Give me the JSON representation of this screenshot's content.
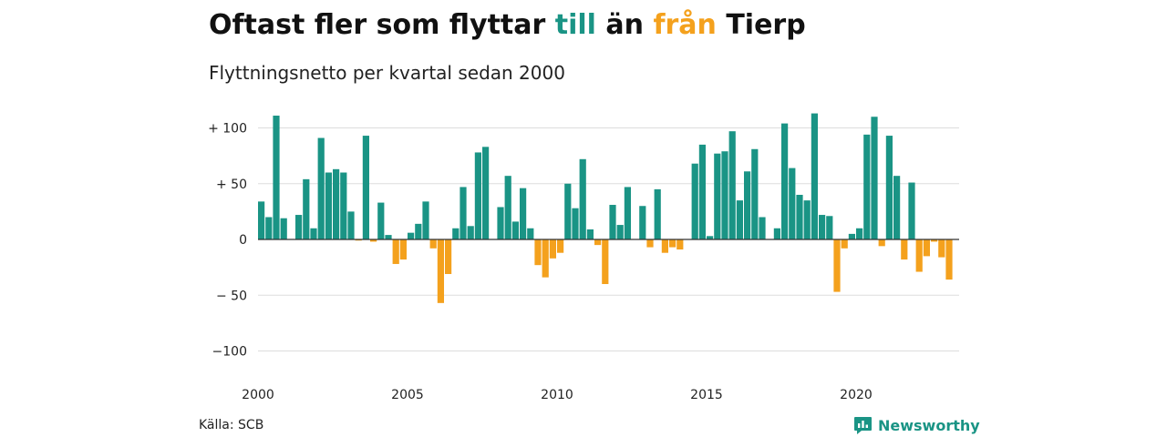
{
  "title": {
    "prefix": "Oftast fler som flyttar ",
    "word_in": "till",
    "middle": " än ",
    "word_out": "från",
    "suffix": " Tierp"
  },
  "subtitle": "Flyttningsnetto per kvartal sedan 2000",
  "source": "Källa: SCB",
  "brand": {
    "name": "Newsworthy",
    "icon": "bar-chart-speech-bubble-icon"
  },
  "colors": {
    "positive": "#1a9485",
    "negative": "#f4a11d",
    "grid": "#dddddd",
    "zero_line": "#333333",
    "brand": "#1a9485"
  },
  "chart_data": {
    "type": "bar",
    "title": "Oftast fler som flyttar till än från Tierp",
    "subtitle": "Flyttningsnetto per kvartal sedan 2000",
    "xlabel": "",
    "ylabel": "",
    "x_start": "2000-Q1",
    "quarters_per_year": 4,
    "ylim": [
      -110,
      120
    ],
    "yticks": [
      {
        "value": 100,
        "label": "+ 100"
      },
      {
        "value": 50,
        "label": "+  50"
      },
      {
        "value": 0,
        "label": "0"
      },
      {
        "value": -50,
        "label": "− 50"
      },
      {
        "value": -100,
        "label": "−100"
      }
    ],
    "xticks": [
      {
        "year": 2000,
        "label": "2000"
      },
      {
        "year": 2005,
        "label": "2005"
      },
      {
        "year": 2010,
        "label": "2010"
      },
      {
        "year": 2015,
        "label": "2015"
      },
      {
        "year": 2020,
        "label": "2020"
      }
    ],
    "grid": true,
    "legend": "none",
    "values": [
      34,
      20,
      111,
      19,
      0,
      22,
      54,
      10,
      91,
      60,
      63,
      60,
      25,
      -1,
      93,
      -2,
      33,
      4,
      -22,
      -18,
      6,
      14,
      34,
      -8,
      -57,
      -31,
      10,
      47,
      12,
      78,
      83,
      0,
      29,
      57,
      16,
      46,
      10,
      -23,
      -34,
      -17,
      -12,
      50,
      28,
      72,
      9,
      -5,
      -40,
      31,
      13,
      47,
      0,
      30,
      -7,
      45,
      -12,
      -7,
      -9,
      0,
      68,
      85,
      3,
      77,
      79,
      97,
      35,
      61,
      81,
      20,
      0,
      10,
      104,
      64,
      40,
      35,
      113,
      22,
      21,
      -47,
      -8,
      5,
      10,
      94,
      110,
      -6,
      93,
      57,
      -18,
      51,
      -29,
      -15,
      -2,
      -16,
      -36
    ]
  }
}
